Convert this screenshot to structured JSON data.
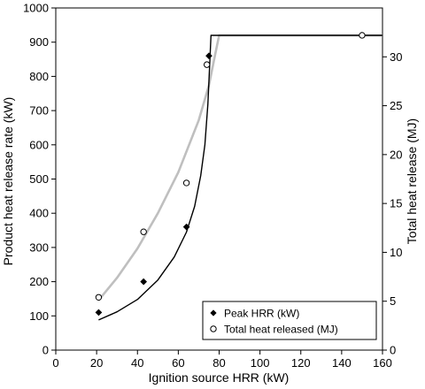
{
  "chart_data": {
    "type": "scatter",
    "xlabel": "Ignition source HRR (kW)",
    "ylabel": "Product heat release rate (kW)",
    "y2label": "Total heat release (MJ)",
    "xlim": [
      0,
      160
    ],
    "ylim": [
      0,
      1000
    ],
    "y2lim": [
      0,
      35
    ],
    "xticks": [
      0,
      20,
      40,
      60,
      80,
      100,
      120,
      140,
      160
    ],
    "yticks": [
      0,
      100,
      200,
      300,
      400,
      500,
      600,
      700,
      800,
      900,
      1000
    ],
    "y2ticks": [
      0,
      5,
      10,
      15,
      20,
      25,
      30
    ],
    "grid": false,
    "legend_position": "bottom-right",
    "series": [
      {
        "name": "Peak HRR (kW)",
        "axis": "left",
        "marker": "filled-diamond",
        "points": [
          [
            21,
            110
          ],
          [
            43,
            200
          ],
          [
            64,
            360
          ],
          [
            75,
            860
          ],
          [
            150,
            920
          ]
        ],
        "fit_curve": [
          [
            21,
            88
          ],
          [
            30,
            112
          ],
          [
            40,
            148
          ],
          [
            50,
            205
          ],
          [
            58,
            272
          ],
          [
            64,
            345
          ],
          [
            68,
            420
          ],
          [
            71,
            510
          ],
          [
            73,
            600
          ],
          [
            74.5,
            720
          ],
          [
            75.5,
            850
          ],
          [
            76,
            920
          ],
          [
            160,
            920
          ]
        ],
        "fit_color": "#000000"
      },
      {
        "name": "Total heat released (MJ)",
        "axis": "right",
        "marker": "open-circle",
        "points": [
          [
            21,
            5.4
          ],
          [
            43,
            12.1
          ],
          [
            64,
            17.1
          ],
          [
            74,
            29.2
          ],
          [
            150,
            32.2
          ]
        ],
        "fit_curve": [
          [
            21,
            5.1
          ],
          [
            30,
            7.4
          ],
          [
            40,
            10.4
          ],
          [
            50,
            14.0
          ],
          [
            60,
            18.2
          ],
          [
            70,
            23.5
          ],
          [
            75,
            27.1
          ],
          [
            78,
            30.2
          ],
          [
            80,
            32.2
          ],
          [
            160,
            32.2
          ]
        ],
        "fit_color": "#bfbfbf"
      }
    ]
  }
}
